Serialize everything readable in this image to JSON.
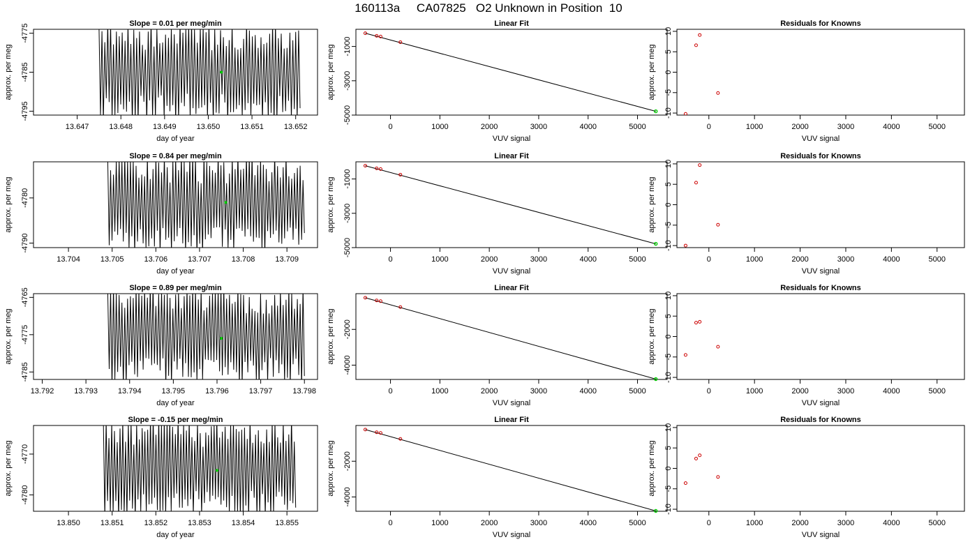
{
  "title": "160113a     CA07825   O2 Unknown in Position  10",
  "chart_data": [
    {
      "type": "line",
      "title": "Slope =  0.01  per meg/min",
      "xlabel": "day of year",
      "ylabel": "approx. per meg",
      "xlim": [
        13.646,
        13.6525
      ],
      "ylim": [
        -4796,
        -4774
      ],
      "xticks": [
        "13.647",
        "13.648",
        "13.649",
        "13.650",
        "13.651",
        "13.652"
      ],
      "yticks": [
        "-4775",
        "-4785",
        "-4795"
      ],
      "x_start": 13.6475,
      "x_end": 13.6521,
      "n_points": 140,
      "mean_point": {
        "x": 13.6503,
        "y": -4785
      },
      "seed": 11
    },
    {
      "type": "scatter",
      "title": "Linear Fit",
      "xlabel": "VUV signal",
      "ylabel": "approx. per meg",
      "xlim": [
        -700,
        5600
      ],
      "ylim": [
        -5000,
        0
      ],
      "xticks": [
        "0",
        "1000",
        "2000",
        "3000",
        "4000",
        "5000"
      ],
      "yticks": [
        "-1000",
        "-3000",
        "-5000"
      ],
      "points": [
        {
          "x": -510,
          "y": -230
        },
        {
          "x": -280,
          "y": -380
        },
        {
          "x": -200,
          "y": -420
        },
        {
          "x": 200,
          "y": -750
        }
      ],
      "unknown": {
        "x": 5370,
        "y": -4780
      },
      "fit": [
        {
          "x": -510,
          "y": -230
        },
        {
          "x": 5370,
          "y": -4780
        }
      ]
    },
    {
      "type": "scatter",
      "title": "Residuals for Knowns",
      "xlabel": "VUV signal",
      "ylabel": "approx. per meg",
      "xlim": [
        -700,
        5600
      ],
      "ylim": [
        -10.5,
        10.5
      ],
      "xticks": [
        "0",
        "1000",
        "2000",
        "3000",
        "4000",
        "5000"
      ],
      "yticks": [
        "10",
        "5",
        "0",
        "-5",
        "-10"
      ],
      "points": [
        {
          "x": -510,
          "y": -10.2
        },
        {
          "x": -280,
          "y": 6.6
        },
        {
          "x": -200,
          "y": 9.1
        },
        {
          "x": 200,
          "y": -5.1
        }
      ]
    },
    {
      "type": "line",
      "title": "Slope =  0.84  per meg/min",
      "xlabel": "day of year",
      "ylabel": "approx. per meg",
      "xlim": [
        13.7032,
        13.7097
      ],
      "ylim": [
        -4791,
        -4772
      ],
      "xticks": [
        "13.704",
        "13.705",
        "13.706",
        "13.707",
        "13.708",
        "13.709"
      ],
      "yticks": [
        "-4780",
        "-4790"
      ],
      "x_start": 13.7049,
      "x_end": 13.7094,
      "n_points": 140,
      "mean_point": {
        "x": 13.7076,
        "y": -4781
      },
      "seed": 23
    },
    {
      "type": "scatter",
      "title": "Linear Fit",
      "xlabel": "VUV signal",
      "ylabel": "approx. per meg",
      "xlim": [
        -700,
        5600
      ],
      "ylim": [
        -5000,
        0
      ],
      "xticks": [
        "0",
        "1000",
        "2000",
        "3000",
        "4000",
        "5000"
      ],
      "yticks": [
        "-1000",
        "-3000",
        "-5000"
      ],
      "points": [
        {
          "x": -510,
          "y": -230
        },
        {
          "x": -280,
          "y": -380
        },
        {
          "x": -200,
          "y": -420
        },
        {
          "x": 200,
          "y": -750
        }
      ],
      "unknown": {
        "x": 5370,
        "y": -4780
      },
      "fit": [
        {
          "x": -510,
          "y": -230
        },
        {
          "x": 5370,
          "y": -4780
        }
      ]
    },
    {
      "type": "scatter",
      "title": "Residuals for Knowns",
      "xlabel": "VUV signal",
      "ylabel": "approx. per meg",
      "xlim": [
        -700,
        5600
      ],
      "ylim": [
        -10.5,
        10.5
      ],
      "xticks": [
        "0",
        "1000",
        "2000",
        "3000",
        "4000",
        "5000"
      ],
      "yticks": [
        "10",
        "5",
        "0",
        "-5",
        "-10"
      ],
      "points": [
        {
          "x": -510,
          "y": -10.0
        },
        {
          "x": -280,
          "y": 5.4
        },
        {
          "x": -200,
          "y": 9.7
        },
        {
          "x": 200,
          "y": -4.9
        }
      ]
    },
    {
      "type": "line",
      "title": "Slope =  0.89  per meg/min",
      "xlabel": "day of year",
      "ylabel": "approx. per meg",
      "xlim": [
        13.7918,
        13.7983
      ],
      "ylim": [
        -4787,
        -4764
      ],
      "xticks": [
        "13.792",
        "13.793",
        "13.794",
        "13.795",
        "13.796",
        "13.797",
        "13.798"
      ],
      "yticks": [
        "-4765",
        "-4775",
        "-4785"
      ],
      "x_start": 13.7935,
      "x_end": 13.798,
      "n_points": 140,
      "mean_point": {
        "x": 13.7961,
        "y": -4776
      },
      "seed": 37
    },
    {
      "type": "scatter",
      "title": "Linear Fit",
      "xlabel": "VUV signal",
      "ylabel": "approx. per meg",
      "xlim": [
        -700,
        5600
      ],
      "ylim": [
        -4800,
        0
      ],
      "xticks": [
        "0",
        "1000",
        "2000",
        "3000",
        "4000",
        "5000"
      ],
      "yticks": [
        "-2000",
        "-4000"
      ],
      "points": [
        {
          "x": -510,
          "y": -230
        },
        {
          "x": -280,
          "y": -380
        },
        {
          "x": -200,
          "y": -420
        },
        {
          "x": 200,
          "y": -750
        }
      ],
      "unknown": {
        "x": 5370,
        "y": -4780
      },
      "fit": [
        {
          "x": -510,
          "y": -230
        },
        {
          "x": 5370,
          "y": -4780
        }
      ]
    },
    {
      "type": "scatter",
      "title": "Residuals for Knowns",
      "xlabel": "VUV signal",
      "ylabel": "approx. per meg",
      "xlim": [
        -700,
        5600
      ],
      "ylim": [
        -10.5,
        10.5
      ],
      "xticks": [
        "0",
        "1000",
        "2000",
        "3000",
        "4000",
        "5000"
      ],
      "yticks": [
        "10",
        "5",
        "0",
        "-5",
        "-10"
      ],
      "points": [
        {
          "x": -510,
          "y": -4.5
        },
        {
          "x": -280,
          "y": 3.4
        },
        {
          "x": -200,
          "y": 3.6
        },
        {
          "x": 200,
          "y": -2.5
        }
      ]
    },
    {
      "type": "line",
      "title": "Slope =  -0.15  per meg/min",
      "xlabel": "day of year",
      "ylabel": "approx. per meg",
      "xlim": [
        13.8492,
        13.8557
      ],
      "ylim": [
        -4784,
        -4763
      ],
      "xticks": [
        "13.850",
        "13.851",
        "13.852",
        "13.853",
        "13.854",
        "13.855"
      ],
      "yticks": [
        "-4770",
        "-4780"
      ],
      "x_start": 13.8508,
      "x_end": 13.8552,
      "n_points": 140,
      "mean_point": {
        "x": 13.8534,
        "y": -4774
      },
      "seed": 53
    },
    {
      "type": "scatter",
      "title": "Linear Fit",
      "xlabel": "VUV signal",
      "ylabel": "approx. per meg",
      "xlim": [
        -700,
        5600
      ],
      "ylim": [
        -4800,
        0
      ],
      "xticks": [
        "0",
        "1000",
        "2000",
        "3000",
        "4000",
        "5000"
      ],
      "yticks": [
        "-2000",
        "-4000"
      ],
      "points": [
        {
          "x": -510,
          "y": -230
        },
        {
          "x": -280,
          "y": -380
        },
        {
          "x": -200,
          "y": -420
        },
        {
          "x": 200,
          "y": -750
        }
      ],
      "unknown": {
        "x": 5370,
        "y": -4780
      },
      "fit": [
        {
          "x": -510,
          "y": -230
        },
        {
          "x": 5370,
          "y": -4780
        }
      ]
    },
    {
      "type": "scatter",
      "title": "Residuals for Knowns",
      "xlabel": "VUV signal",
      "ylabel": "approx. per meg",
      "xlim": [
        -700,
        5600
      ],
      "ylim": [
        -10.5,
        10.5
      ],
      "xticks": [
        "0",
        "1000",
        "2000",
        "3000",
        "4000",
        "5000"
      ],
      "yticks": [
        "10",
        "5",
        "0",
        "-5",
        "-10"
      ],
      "points": [
        {
          "x": -510,
          "y": -3.6
        },
        {
          "x": -280,
          "y": 2.4
        },
        {
          "x": -200,
          "y": 3.2
        },
        {
          "x": 200,
          "y": -2.1
        }
      ]
    }
  ],
  "colors": {
    "line": "#000000",
    "known_points": "#cc0000",
    "unknown_point": "#00cc00",
    "frame": "#000000"
  }
}
